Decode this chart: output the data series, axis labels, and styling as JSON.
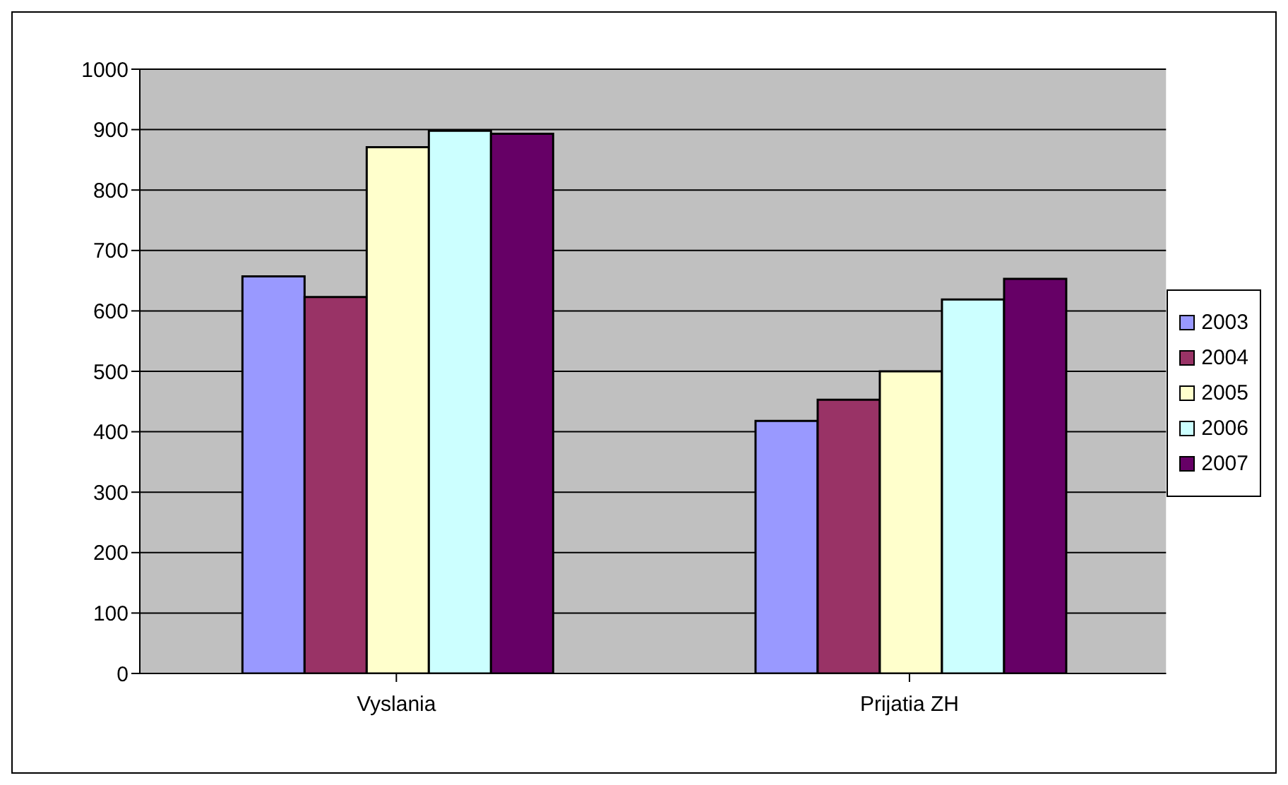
{
  "chart_data": {
    "type": "bar",
    "categories": [
      "Vyslania",
      "Prijatia ZH"
    ],
    "series": [
      {
        "name": "2003",
        "color": "#9999ff",
        "values": [
          657,
          418
        ]
      },
      {
        "name": "2004",
        "color": "#993366",
        "values": [
          623,
          453
        ]
      },
      {
        "name": "2005",
        "color": "#ffffcc",
        "values": [
          871,
          500
        ]
      },
      {
        "name": "2006",
        "color": "#ccffff",
        "values": [
          898,
          619
        ]
      },
      {
        "name": "2007",
        "color": "#660066",
        "values": [
          893,
          653
        ]
      }
    ],
    "ylim": [
      0,
      1000
    ],
    "yticks": [
      0,
      100,
      200,
      300,
      400,
      500,
      600,
      700,
      800,
      900,
      1000
    ],
    "grid": "y",
    "legend": "right"
  }
}
